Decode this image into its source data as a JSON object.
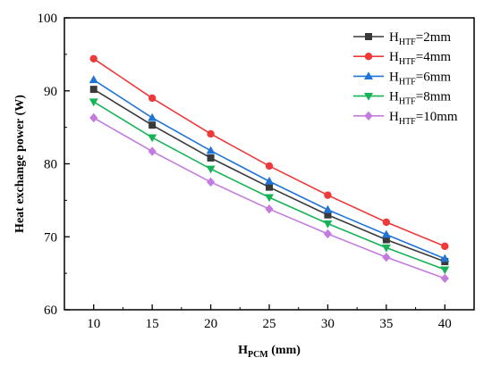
{
  "chart_data": {
    "type": "line",
    "title": "",
    "xlabel": {
      "main": "H",
      "sub": "PCM",
      "rest": " (mm)"
    },
    "ylabel": "Heat exchange power (W)",
    "xlim": [
      7.5,
      42.5
    ],
    "ylim": [
      60,
      100
    ],
    "xticks": [
      10,
      15,
      20,
      25,
      30,
      35,
      40
    ],
    "yticks": [
      60,
      70,
      80,
      90,
      100
    ],
    "grid": false,
    "legend_position": "top-right",
    "x": [
      10,
      15,
      20,
      25,
      30,
      35,
      40
    ],
    "series": [
      {
        "name": {
          "main": "H",
          "sub": "HTF",
          "rest": "=2mm"
        },
        "marker": "square",
        "color": "#3a3a3a",
        "values": [
          90.2,
          85.3,
          80.8,
          76.8,
          73.0,
          69.6,
          66.6
        ]
      },
      {
        "name": {
          "main": "H",
          "sub": "HTF",
          "rest": "=4mm"
        },
        "marker": "circle",
        "color": "#ee3a3a",
        "values": [
          94.4,
          89.0,
          84.1,
          79.7,
          75.7,
          72.0,
          68.7
        ]
      },
      {
        "name": {
          "main": "H",
          "sub": "HTF",
          "rest": "=6mm"
        },
        "marker": "triangle-up",
        "color": "#1f74d6",
        "values": [
          91.5,
          86.3,
          81.8,
          77.6,
          73.7,
          70.3,
          67.0
        ]
      },
      {
        "name": {
          "main": "H",
          "sub": "HTF",
          "rest": "=8mm"
        },
        "marker": "triangle-down",
        "color": "#16b456",
        "values": [
          88.5,
          83.6,
          79.3,
          75.4,
          71.8,
          68.5,
          65.5
        ]
      },
      {
        "name": {
          "main": "H",
          "sub": "HTF",
          "rest": "=10mm"
        },
        "marker": "diamond",
        "color": "#c47be0",
        "values": [
          86.3,
          81.7,
          77.5,
          73.8,
          70.4,
          67.2,
          64.3
        ]
      }
    ]
  }
}
